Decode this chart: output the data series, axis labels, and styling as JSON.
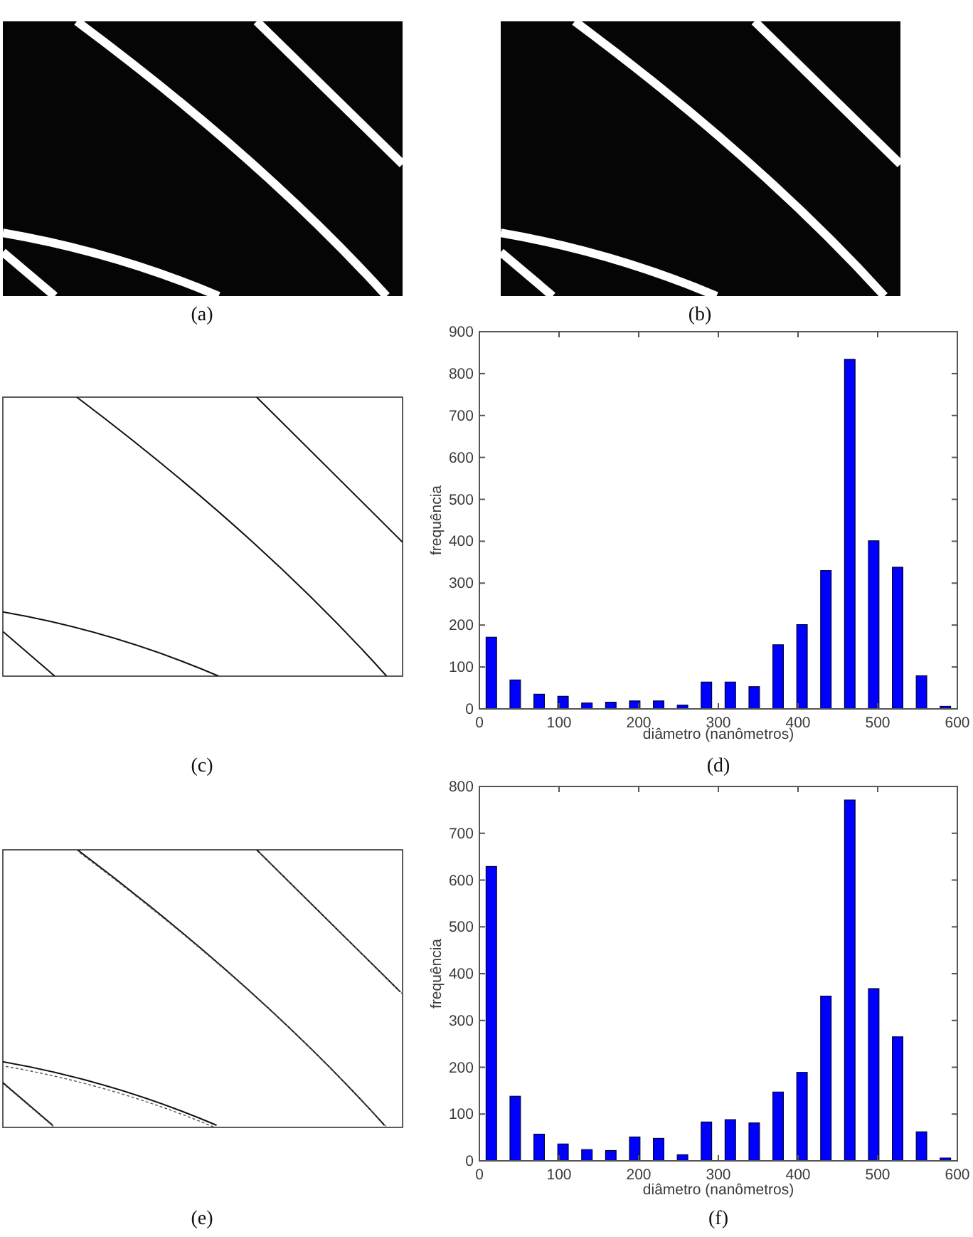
{
  "chart_data": [
    {
      "type": "other",
      "annotations": [
        "(a)"
      ]
    },
    {
      "type": "other",
      "annotations": [
        "(b)"
      ]
    },
    {
      "type": "other",
      "annotations": [
        "(c)"
      ]
    },
    {
      "type": "bar",
      "xlabel": "diâmetro (nanômetros)",
      "ylabel": "frequência",
      "annotations": [
        "(d)"
      ],
      "x": [
        15,
        45,
        75,
        105,
        135,
        165,
        195,
        225,
        255,
        285,
        315,
        345,
        375,
        405,
        435,
        465,
        495,
        525,
        555,
        585
      ],
      "values": [
        171,
        69,
        35,
        30,
        14,
        16,
        19,
        19,
        9,
        64,
        64,
        53,
        153,
        201,
        330,
        834,
        401,
        338,
        79,
        6
      ],
      "color": "#0000ff",
      "xlim": [
        0,
        600
      ],
      "xticks": [
        0,
        100,
        200,
        300,
        400,
        500,
        600
      ],
      "ylim": [
        0,
        900
      ],
      "yticks": [
        0,
        100,
        200,
        300,
        400,
        500,
        600,
        700,
        800,
        900
      ]
    },
    {
      "type": "other",
      "annotations": [
        "(e)"
      ]
    },
    {
      "type": "bar",
      "xlabel": "diâmetro (nanômetros)",
      "ylabel": "frequência",
      "annotations": [
        "(f)"
      ],
      "x": [
        15,
        45,
        75,
        105,
        135,
        165,
        195,
        225,
        255,
        285,
        315,
        345,
        375,
        405,
        435,
        465,
        495,
        525,
        555,
        585
      ],
      "values": [
        629,
        138,
        57,
        36,
        24,
        22,
        51,
        48,
        13,
        83,
        88,
        81,
        147,
        189,
        352,
        771,
        368,
        265,
        62,
        6
      ],
      "color": "#0000ff",
      "xlim": [
        0,
        600
      ],
      "xticks": [
        0,
        100,
        200,
        300,
        400,
        500,
        600
      ],
      "ylim": [
        0,
        800
      ],
      "yticks": [
        0,
        100,
        200,
        300,
        400,
        500,
        600,
        700,
        800
      ]
    }
  ]
}
